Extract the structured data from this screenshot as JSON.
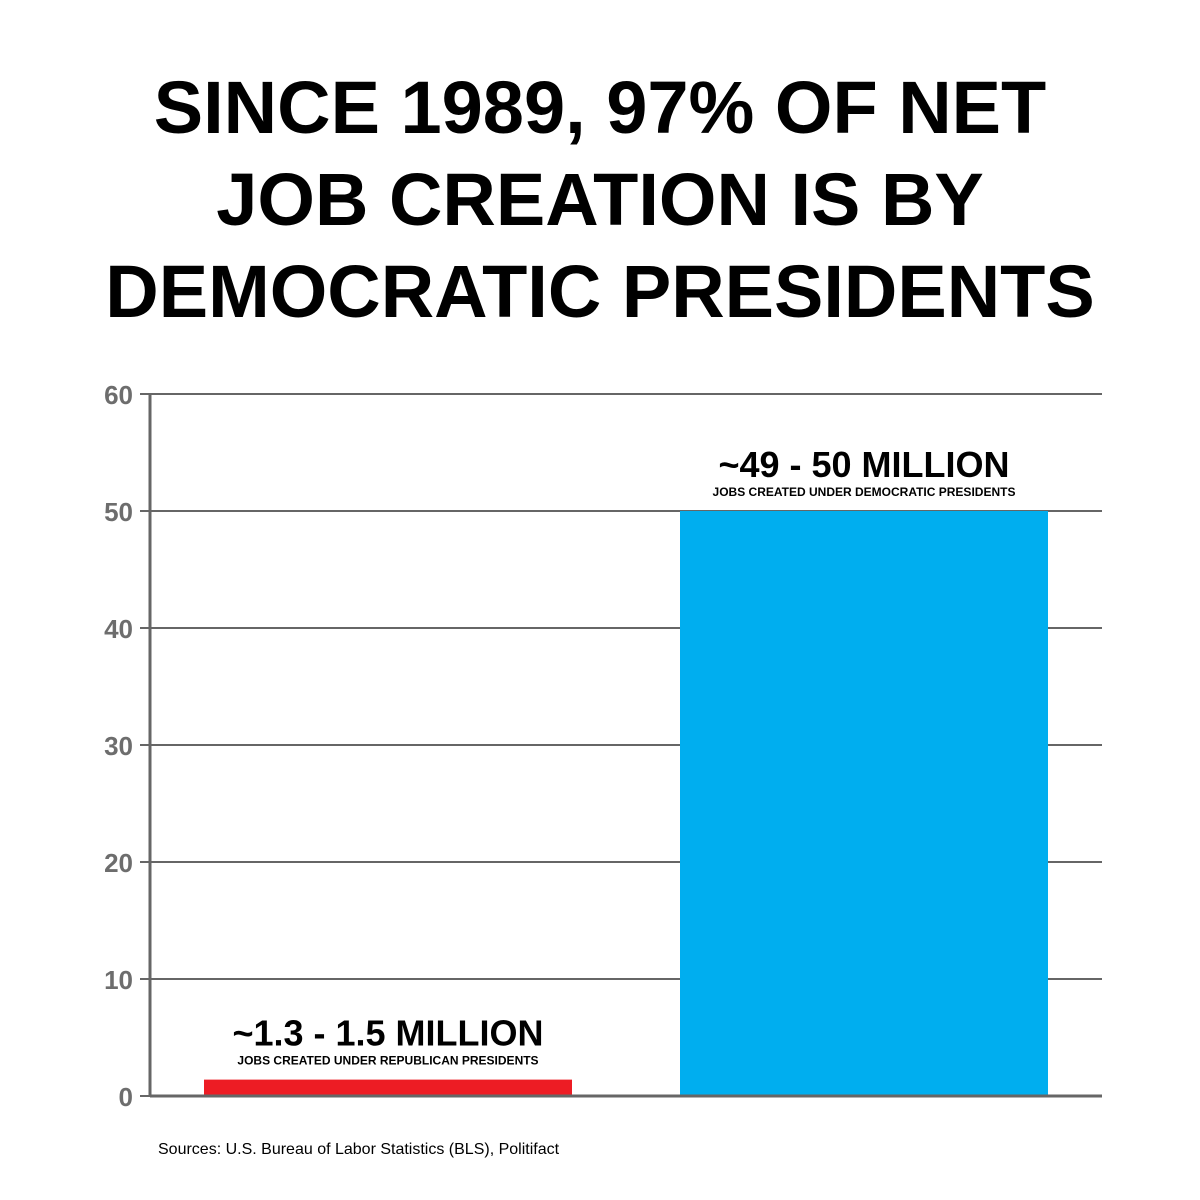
{
  "title_lines": [
    "SINCE 1989, 97% OF NET",
    "JOB CREATION IS BY",
    "DEMOCRATIC PRESIDENTS"
  ],
  "sources": "Sources: U.S. Bureau of Labor Statistics (BLS), Politifact",
  "chart_data": {
    "type": "bar",
    "categories": [
      "Republican Presidents",
      "Democratic Presidents"
    ],
    "values": [
      1.4,
      50
    ],
    "colors": [
      "#ed1c24",
      "#00aeef"
    ],
    "value_labels": [
      "~1.3 - 1.5 MILLION",
      "~49 - 50 MILLION"
    ],
    "sub_labels": [
      "JOBS CREATED UNDER REPUBLICAN PRESIDENTS",
      "JOBS CREATED UNDER DEMOCRATIC PRESIDENTS"
    ],
    "ylim": [
      0,
      60
    ],
    "yticks": [
      0,
      10,
      20,
      30,
      40,
      50,
      60
    ],
    "grid": true,
    "axis_color": "#666666"
  }
}
